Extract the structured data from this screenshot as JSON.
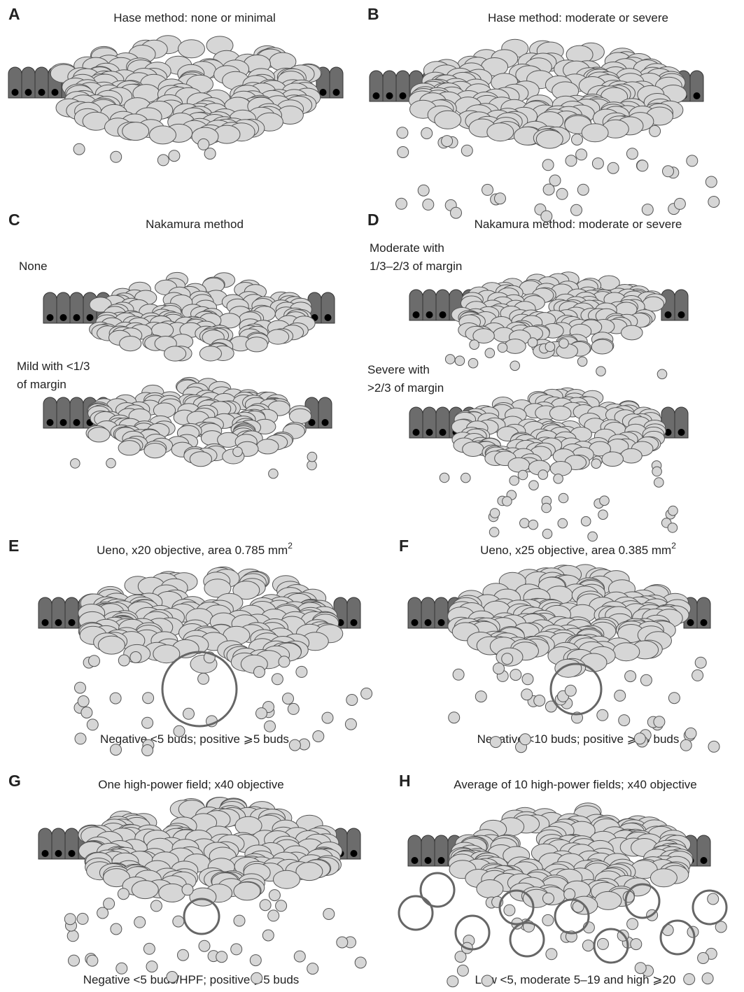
{
  "panels": [
    {
      "letter": "A",
      "title": "Hase method: none or minimal"
    },
    {
      "letter": "B",
      "title": "Hase method: moderate or severe"
    },
    {
      "letter": "C",
      "title": "Nakamura method",
      "labels": [
        [
          "None"
        ],
        [
          "Mild with <1/3",
          "of margin"
        ]
      ]
    },
    {
      "letter": "D",
      "title": "Nakamura method: moderate or severe",
      "labels": [
        [
          "Moderate with",
          "1/3–2/3 of margin"
        ],
        [
          "Severe with",
          ">2/3 of margin"
        ]
      ]
    },
    {
      "letter": "E",
      "title": "Ueno, x20 objective, area 0.785 mm",
      "title_sup": "2",
      "caption": "Negative <5 buds; positive ⩾5 buds"
    },
    {
      "letter": "F",
      "title": "Ueno, x25 objective, area 0.385 mm",
      "title_sup": "2",
      "caption": "Negative <10 buds; positive ⩾10 buds"
    },
    {
      "letter": "G",
      "title": "One high-power field; x40 objective",
      "caption": "Negative <5 buds/HPF; positive ⩾5 buds"
    },
    {
      "letter": "H",
      "title": "Average of 10 high-power fields; x40 objective",
      "caption": "Low <5, moderate 5–19 and high ⩾20"
    }
  ]
}
